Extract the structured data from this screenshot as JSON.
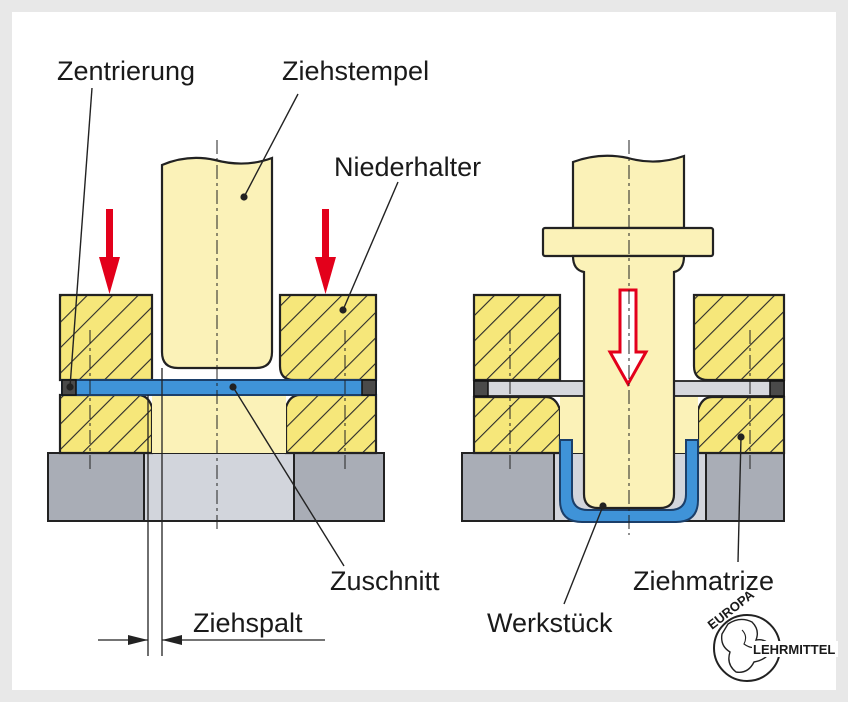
{
  "labels": {
    "zentrierung": "Zentrierung",
    "ziehstempel": "Ziehstempel",
    "niederhalter": "Niederhalter",
    "zuschnitt": "Zuschnitt",
    "ziehspalt": "Ziehspalt",
    "werkstueck": "Werkstück",
    "ziehmatrize": "Ziehmatrize"
  },
  "logo": {
    "top": "EUROPA",
    "bottom": "LEHRMITTEL"
  },
  "colors": {
    "punch": "#fbf2b8",
    "hatch_fill": "#f6e77a",
    "blank": "#3f93d8",
    "table": "#a9adb6",
    "arrow": "#e3001b"
  },
  "icons": {
    "force_arrow": "red-down-arrow-icon",
    "motion_arrow": "hollow-down-arrow-icon",
    "logo": "europa-lehrmittel-logo-icon"
  }
}
